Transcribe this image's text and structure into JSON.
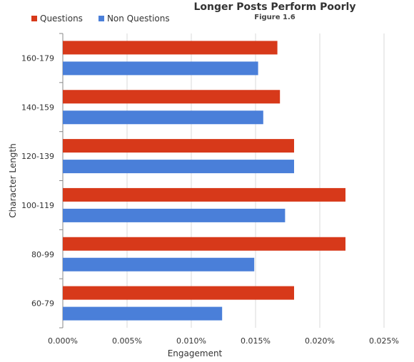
{
  "chart_data": {
    "type": "bar",
    "orientation": "horizontal",
    "title": "Longer Posts Perform Poorly",
    "subtitle": "Figure 1.6",
    "xlabel": "Engagement",
    "ylabel": "Character Length",
    "xlim": [
      0,
      0.025
    ],
    "xticks": [
      "0.000%",
      "0.005%",
      "0.010%",
      "0.015%",
      "0.020%",
      "0.025%"
    ],
    "grid": "vertical",
    "legend_position": "top-left",
    "categories": [
      "160-179",
      "140-159",
      "120-139",
      "100-119",
      "80-99",
      "60-79"
    ],
    "series": [
      {
        "name": "Questions",
        "color": "#d7391a",
        "values": [
          0.0167,
          0.0169,
          0.018,
          0.022,
          0.022,
          0.018
        ]
      },
      {
        "name": "Non Questions",
        "color": "#4a7fd9",
        "values": [
          0.0152,
          0.0156,
          0.018,
          0.0173,
          0.0149,
          0.0124
        ]
      }
    ]
  }
}
